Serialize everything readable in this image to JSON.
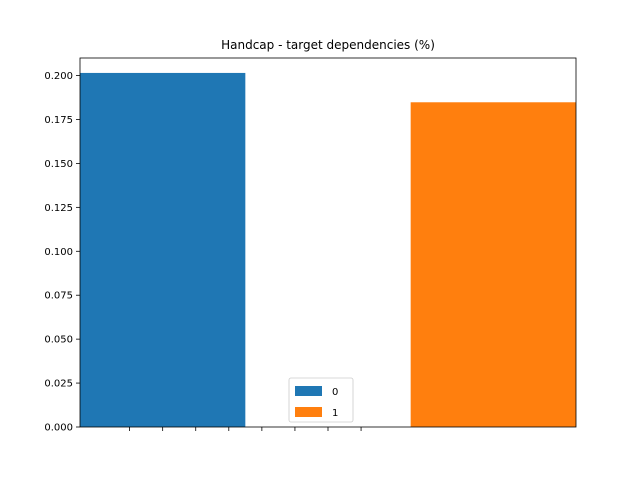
{
  "chart_data": {
    "type": "bar",
    "title": "Handcap - target dependencies (%)",
    "xlabel": "",
    "ylabel": "",
    "ylim": [
      0,
      0.21
    ],
    "yticks": [
      0.0,
      0.025,
      0.05,
      0.075,
      0.1,
      0.125,
      0.15,
      0.175,
      0.2
    ],
    "ytick_labels": [
      "0.000",
      "0.025",
      "0.050",
      "0.075",
      "0.100",
      "0.125",
      "0.150",
      "0.175",
      "0.200"
    ],
    "xlim": [
      -0.5,
      2.5
    ],
    "xticks": [
      -0.2,
      0.0,
      0.2,
      0.4,
      0.6,
      0.8,
      1.0,
      1.2
    ],
    "x_tick_labels_visible": false,
    "grid": false,
    "legend_position": "lower center",
    "series": [
      {
        "name": "0",
        "x": 0,
        "width": 1.0,
        "value": 0.2015,
        "color": "#1f77b4"
      },
      {
        "name": "1",
        "x": 2,
        "width": 1.0,
        "value": 0.1848,
        "color": "#ff7f0e"
      }
    ]
  }
}
